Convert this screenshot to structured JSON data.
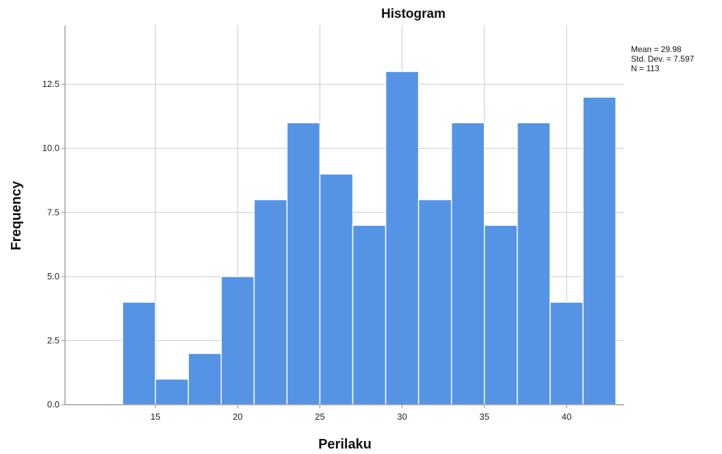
{
  "chart_data": {
    "type": "bar",
    "title": "Histogram",
    "xlabel": "Perilaku",
    "ylabel": "Frequency",
    "bin_width": 2,
    "bins": [
      {
        "start": 13,
        "end": 15,
        "count": 4
      },
      {
        "start": 15,
        "end": 17,
        "count": 1
      },
      {
        "start": 17,
        "end": 19,
        "count": 2
      },
      {
        "start": 19,
        "end": 21,
        "count": 5
      },
      {
        "start": 21,
        "end": 23,
        "count": 8
      },
      {
        "start": 23,
        "end": 25,
        "count": 11
      },
      {
        "start": 25,
        "end": 27,
        "count": 9
      },
      {
        "start": 27,
        "end": 29,
        "count": 7
      },
      {
        "start": 29,
        "end": 31,
        "count": 13
      },
      {
        "start": 31,
        "end": 33,
        "count": 8
      },
      {
        "start": 33,
        "end": 35,
        "count": 11
      },
      {
        "start": 35,
        "end": 37,
        "count": 7
      },
      {
        "start": 37,
        "end": 39,
        "count": 11
      },
      {
        "start": 39,
        "end": 41,
        "count": 4
      },
      {
        "start": 41,
        "end": 43,
        "count": 12
      }
    ],
    "xlim": [
      9.5,
      43.5
    ],
    "ylim": [
      0,
      14.8
    ],
    "x_ticks": [
      15,
      20,
      25,
      30,
      35,
      40
    ],
    "x_tick_labels": [
      "15",
      "20",
      "25",
      "30",
      "35",
      "40"
    ],
    "y_ticks": [
      0,
      2.5,
      5,
      7.5,
      10,
      12.5
    ],
    "y_tick_labels": [
      "0.0",
      "2.5",
      "5.0",
      "7.5",
      "10.0",
      "12.5"
    ],
    "grid": true,
    "bar_color": "#5594e4",
    "grid_color": "#c8c8c8",
    "axis_color": "#8a8a8a"
  },
  "stats": {
    "mean": "Mean = 29.98",
    "std": "Std. Dev. = 7.597",
    "n": "N = 113"
  }
}
